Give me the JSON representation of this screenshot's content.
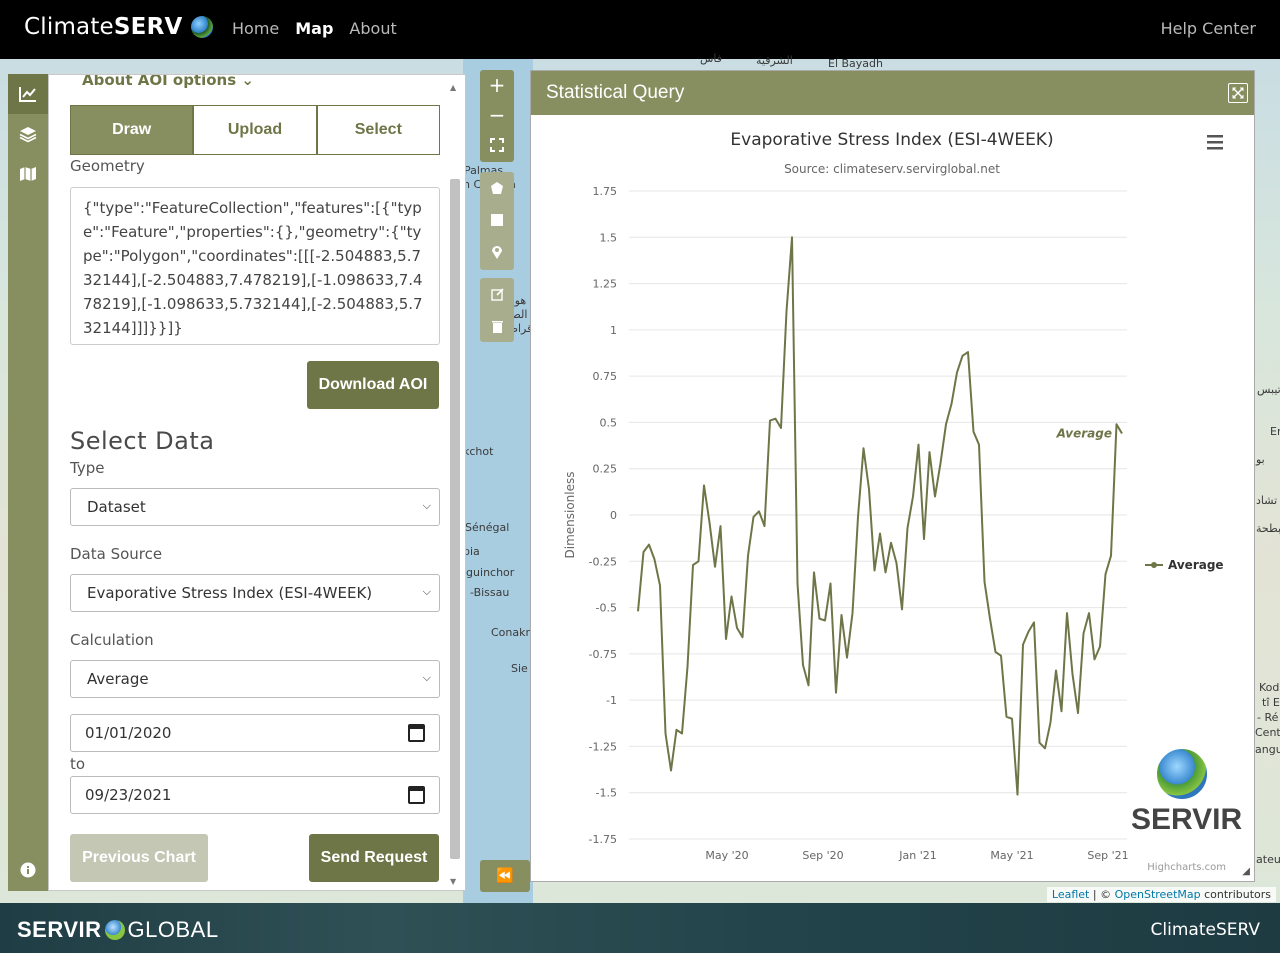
{
  "header": {
    "brand_light": "Climate",
    "brand_bold": "SERV",
    "nav": [
      {
        "label": "Home",
        "active": false
      },
      {
        "label": "Map",
        "active": true
      },
      {
        "label": "About",
        "active": false
      }
    ],
    "help": "Help Center"
  },
  "rail": {
    "icons": [
      "chart-icon",
      "layers-icon",
      "map-icon",
      "info-icon"
    ]
  },
  "sidebar": {
    "aoi_options": "About AOI options",
    "tabs": [
      {
        "label": "Draw",
        "selected": true
      },
      {
        "label": "Upload",
        "selected": false
      },
      {
        "label": "Select",
        "selected": false
      }
    ],
    "geometry_label": "Geometry",
    "geometry_value": "{\"type\":\"FeatureCollection\",\"features\":[{\"type\":\"Feature\",\"properties\":{},\"geometry\":{\"type\":\"Polygon\",\"coordinates\":[[[-2.504883,5.732144],[-2.504883,7.478219],[-1.098633,7.478219],[-1.098633,5.732144],[-2.504883,5.732144]]]}}]}",
    "download_aoi": "Download AOI",
    "select_data_title": "Select Data",
    "type_label": "Type",
    "type_value": "Dataset",
    "source_label": "Data Source",
    "source_value": "Evaporative Stress Index (ESI-4WEEK)",
    "calc_label": "Calculation",
    "calc_value": "Average",
    "start_date": "01/01/2020",
    "to_label": "to",
    "end_date": "09/23/2021",
    "previous_chart": "Previous Chart",
    "send_request": "Send Request"
  },
  "map": {
    "labels": [
      "Palmas",
      "n Canaria",
      "El Bayadh",
      "هوريا",
      "الصحراوية",
      "قراطية",
      "kchot",
      "Sénégal",
      "bia",
      "iguinchor",
      "-Bissau",
      "Conakr",
      "Sie",
      "Kod",
      "tî E",
      "- Ré",
      "Cent",
      "angu",
      "الشرقية",
      "فاس",
      "تشاد",
      "البطحة",
      "بو",
      "Er",
      "تيبس",
      "iateur"
    ],
    "attribution_leaflet": "Leaflet",
    "attribution_sep": " | © ",
    "attribution_osm": "OpenStreetMap",
    "attribution_tail": " contributors"
  },
  "stat_window": {
    "title": "Statistical Query",
    "servir_word": "SERVIR",
    "credit": "Highcharts.com"
  },
  "chart_data": {
    "type": "line",
    "title": "Evaporative Stress Index (ESI-4WEEK)",
    "subtitle": "Source: climateserv.servirglobal.net",
    "ylabel": "Dimensionless",
    "xlabel": "",
    "ylim": [
      -1.75,
      1.75
    ],
    "yticks": [
      1.75,
      1.5,
      1.25,
      1,
      0.75,
      0.5,
      0.25,
      0,
      -0.25,
      -0.5,
      -0.75,
      -1,
      -1.25,
      -1.5,
      -1.75
    ],
    "xticks": [
      "May '20",
      "Sep '20",
      "Jan '21",
      "May '21",
      "Sep '21"
    ],
    "grid": true,
    "legend": "right",
    "color": "#6e7648",
    "series": [
      {
        "name": "Average",
        "values": [
          -0.52,
          -0.2,
          -0.16,
          -0.24,
          -0.38,
          -1.18,
          -1.38,
          -1.16,
          -1.18,
          -0.82,
          -0.27,
          -0.25,
          0.16,
          -0.04,
          -0.28,
          -0.06,
          -0.67,
          -0.44,
          -0.61,
          -0.66,
          -0.22,
          -0.01,
          0.02,
          -0.06,
          0.51,
          0.52,
          0.47,
          1.1,
          1.5,
          -0.37,
          -0.81,
          -0.92,
          -0.31,
          -0.56,
          -0.57,
          -0.37,
          -0.96,
          -0.54,
          -0.77,
          -0.53,
          -0.01,
          0.36,
          0.14,
          -0.3,
          -0.1,
          -0.31,
          -0.15,
          -0.26,
          -0.51,
          -0.07,
          0.1,
          0.38,
          -0.13,
          0.34,
          0.1,
          0.28,
          0.49,
          0.6,
          0.77,
          0.86,
          0.88,
          0.45,
          0.38,
          -0.36,
          -0.56,
          -0.74,
          -0.76,
          -1.09,
          -1.1,
          -1.51,
          -0.7,
          -0.63,
          -0.58,
          -1.23,
          -1.26,
          -1.12,
          -0.84,
          -1.06,
          -0.53,
          -0.86,
          -1.07,
          -0.64,
          -0.53,
          -0.78,
          -0.71,
          -0.32,
          -0.22,
          0.49,
          0.44
        ],
        "label": "Average"
      }
    ]
  },
  "footer": {
    "logo_left": "SERVIR",
    "logo_right": "GLOBAL",
    "right": "ClimateSERV"
  }
}
